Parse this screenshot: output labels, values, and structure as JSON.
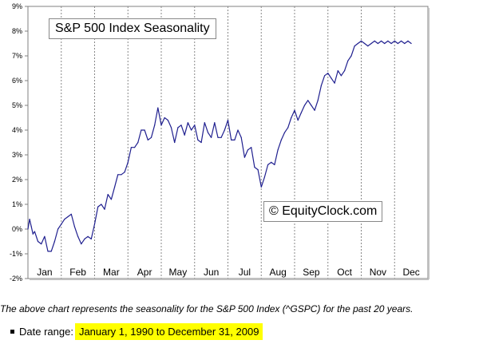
{
  "chart_data": {
    "type": "line",
    "title": "S&P 500 Index Seasonality",
    "ylim": [
      -2,
      9
    ],
    "yticks": [
      "-2%",
      "-1%",
      "0%",
      "1%",
      "2%",
      "3%",
      "4%",
      "5%",
      "6%",
      "7%",
      "8%",
      "9%"
    ],
    "xticks": [
      "Jan",
      "Feb",
      "Mar",
      "Apr",
      "May",
      "Jun",
      "Jul",
      "Aug",
      "Sep",
      "Oct",
      "Nov",
      "Dec"
    ],
    "xlim": [
      0,
      12
    ],
    "grid": "vertical dotted",
    "line_color": "#1f1f8f",
    "annotation": "© EquityClock.com",
    "series": [
      {
        "name": "",
        "x": [
          0.0,
          0.05,
          0.1,
          0.15,
          0.2,
          0.3,
          0.4,
          0.5,
          0.6,
          0.7,
          0.8,
          0.9,
          1.0,
          1.1,
          1.2,
          1.3,
          1.4,
          1.5,
          1.6,
          1.7,
          1.8,
          1.9,
          2.0,
          2.1,
          2.2,
          2.3,
          2.4,
          2.5,
          2.6,
          2.7,
          2.8,
          2.9,
          3.0,
          3.1,
          3.2,
          3.3,
          3.4,
          3.5,
          3.6,
          3.7,
          3.8,
          3.9,
          4.0,
          4.1,
          4.2,
          4.3,
          4.4,
          4.5,
          4.6,
          4.7,
          4.8,
          4.9,
          5.0,
          5.1,
          5.2,
          5.3,
          5.4,
          5.5,
          5.6,
          5.7,
          5.8,
          5.9,
          6.0,
          6.1,
          6.2,
          6.3,
          6.4,
          6.5,
          6.6,
          6.7,
          6.8,
          6.9,
          7.0,
          7.1,
          7.2,
          7.3,
          7.4,
          7.5,
          7.6,
          7.7,
          7.8,
          7.9,
          8.0,
          8.1,
          8.2,
          8.3,
          8.4,
          8.5,
          8.6,
          8.7,
          8.8,
          8.9,
          9.0,
          9.1,
          9.2,
          9.3,
          9.4,
          9.5,
          9.6,
          9.7,
          9.8,
          9.9,
          10.0,
          10.1,
          10.2,
          10.3,
          10.4,
          10.5,
          10.6,
          10.7,
          10.8,
          10.9,
          11.0,
          11.1,
          11.2,
          11.3,
          11.4,
          11.5
        ],
        "y": [
          0.0,
          0.4,
          0.1,
          -0.2,
          -0.1,
          -0.5,
          -0.6,
          -0.3,
          -0.9,
          -0.9,
          -0.5,
          0.0,
          0.2,
          0.4,
          0.5,
          0.6,
          0.1,
          -0.3,
          -0.6,
          -0.4,
          -0.3,
          -0.4,
          0.2,
          0.9,
          1.0,
          0.8,
          1.4,
          1.2,
          1.7,
          2.2,
          2.2,
          2.3,
          2.7,
          3.3,
          3.3,
          3.5,
          4.0,
          4.0,
          3.6,
          3.7,
          4.2,
          4.9,
          4.2,
          4.5,
          4.4,
          4.1,
          3.5,
          4.1,
          4.2,
          3.8,
          4.3,
          4.0,
          4.2,
          3.6,
          3.5,
          4.3,
          3.9,
          3.7,
          4.3,
          3.7,
          3.7,
          4.0,
          4.4,
          3.6,
          3.6,
          4.0,
          3.7,
          2.9,
          3.2,
          3.3,
          2.5,
          2.4,
          1.7,
          2.1,
          2.6,
          2.7,
          2.6,
          3.2,
          3.6,
          3.9,
          4.1,
          4.5,
          4.8,
          4.4,
          4.7,
          5.0,
          5.2,
          5.0,
          4.8,
          5.2,
          5.8,
          6.2,
          6.3,
          6.1,
          5.9,
          6.4,
          6.2,
          6.4,
          6.8,
          7.0,
          7.4,
          7.5,
          7.6,
          7.5,
          7.4,
          7.5,
          7.6,
          7.5,
          7.6,
          7.5,
          7.6,
          7.5,
          7.6,
          7.5,
          7.6,
          7.5,
          7.6,
          7.5
        ]
      }
    ]
  },
  "footer": {
    "caption": "The above chart represents the seasonality for the S&P 500 Index (^GSPC) for the past 20 years.",
    "date_range_label": "Date range:",
    "date_range_value": "January 1, 1990 to December 31, 2009"
  }
}
